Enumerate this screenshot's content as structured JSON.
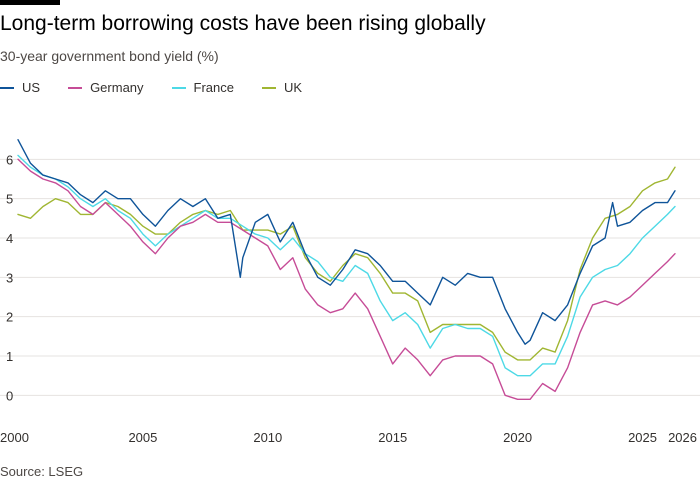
{
  "chart_data": {
    "type": "line",
    "title": "Long-term borrowing costs have been rising globally",
    "subtitle": "30-year government bond yield (%)",
    "source": "Source: LSEG",
    "xlim": [
      2000,
      2026.5
    ],
    "ylim": [
      -0.5,
      7
    ],
    "yticks": [
      0,
      1,
      2,
      3,
      4,
      5,
      6
    ],
    "xticks": [
      {
        "value": 2000,
        "label": "2000"
      },
      {
        "value": 2005,
        "label": "2005"
      },
      {
        "value": 2010,
        "label": "2010"
      },
      {
        "value": 2015,
        "label": "2015"
      },
      {
        "value": 2020,
        "label": "2020"
      },
      {
        "value": 2025,
        "label": "2025"
      },
      {
        "value": 2026,
        "label": "2026"
      }
    ],
    "grid": true,
    "legend_position": "top-left",
    "series": [
      {
        "name": "US",
        "color": "#0f5499",
        "x": [
          2000,
          2000.5,
          2001,
          2001.5,
          2002,
          2002.5,
          2003,
          2003.5,
          2004,
          2004.5,
          2005,
          2005.5,
          2006,
          2006.5,
          2007,
          2007.5,
          2008,
          2008.5,
          2008.9,
          2009,
          2009.5,
          2010,
          2010.5,
          2011,
          2011.5,
          2012,
          2012.5,
          2013,
          2013.5,
          2014,
          2014.5,
          2015,
          2015.5,
          2016,
          2016.5,
          2017,
          2017.5,
          2018,
          2018.5,
          2019,
          2019.5,
          2020,
          2020.3,
          2020.5,
          2021,
          2021.5,
          2022,
          2022.5,
          2023,
          2023.5,
          2023.8,
          2024,
          2024.5,
          2025,
          2025.5,
          2026,
          2026.3
        ],
        "y": [
          6.5,
          5.9,
          5.6,
          5.5,
          5.4,
          5.1,
          4.9,
          5.2,
          5.0,
          5.0,
          4.6,
          4.3,
          4.7,
          5.0,
          4.8,
          5.0,
          4.5,
          4.6,
          3.0,
          3.5,
          4.4,
          4.6,
          3.9,
          4.4,
          3.6,
          3.0,
          2.8,
          3.2,
          3.7,
          3.6,
          3.3,
          2.9,
          2.9,
          2.6,
          2.3,
          3.0,
          2.8,
          3.1,
          3.0,
          3.0,
          2.2,
          1.6,
          1.3,
          1.4,
          2.1,
          1.9,
          2.3,
          3.1,
          3.8,
          4.0,
          4.9,
          4.3,
          4.4,
          4.7,
          4.9,
          4.9,
          5.2
        ]
      },
      {
        "name": "Germany",
        "color": "#c64c97",
        "x": [
          2000,
          2000.5,
          2001,
          2001.5,
          2002,
          2002.5,
          2003,
          2003.5,
          2004,
          2004.5,
          2005,
          2005.5,
          2006,
          2006.5,
          2007,
          2007.5,
          2008,
          2008.5,
          2009,
          2009.5,
          2010,
          2010.5,
          2011,
          2011.5,
          2012,
          2012.5,
          2013,
          2013.5,
          2014,
          2014.5,
          2015,
          2015.5,
          2016,
          2016.5,
          2017,
          2017.5,
          2018,
          2018.5,
          2019,
          2019.5,
          2020,
          2020.5,
          2021,
          2021.5,
          2022,
          2022.5,
          2023,
          2023.5,
          2024,
          2024.5,
          2025,
          2025.5,
          2026,
          2026.3
        ],
        "y": [
          6.0,
          5.7,
          5.5,
          5.4,
          5.2,
          4.8,
          4.6,
          4.9,
          4.6,
          4.3,
          3.9,
          3.6,
          4.0,
          4.3,
          4.4,
          4.6,
          4.4,
          4.4,
          4.2,
          4.0,
          3.8,
          3.2,
          3.5,
          2.7,
          2.3,
          2.1,
          2.2,
          2.6,
          2.2,
          1.5,
          0.8,
          1.2,
          0.9,
          0.5,
          0.9,
          1.0,
          1.0,
          1.0,
          0.8,
          0.0,
          -0.1,
          -0.1,
          0.3,
          0.1,
          0.7,
          1.6,
          2.3,
          2.4,
          2.3,
          2.5,
          2.8,
          3.1,
          3.4,
          3.6
        ]
      },
      {
        "name": "France",
        "color": "#4dd9e6",
        "x": [
          2000,
          2000.5,
          2001,
          2001.5,
          2002,
          2002.5,
          2003,
          2003.5,
          2004,
          2004.5,
          2005,
          2005.5,
          2006,
          2006.5,
          2007,
          2007.5,
          2008,
          2008.5,
          2009,
          2009.5,
          2010,
          2010.5,
          2011,
          2011.5,
          2012,
          2012.5,
          2013,
          2013.5,
          2014,
          2014.5,
          2015,
          2015.5,
          2016,
          2016.5,
          2017,
          2017.5,
          2018,
          2018.5,
          2019,
          2019.5,
          2020,
          2020.5,
          2021,
          2021.5,
          2022,
          2022.5,
          2023,
          2023.5,
          2024,
          2024.5,
          2025,
          2025.5,
          2026,
          2026.3
        ],
        "y": [
          6.1,
          5.8,
          5.6,
          5.5,
          5.3,
          5.0,
          4.8,
          5.0,
          4.7,
          4.5,
          4.1,
          3.8,
          4.1,
          4.3,
          4.5,
          4.7,
          4.5,
          4.5,
          4.3,
          4.1,
          4.0,
          3.7,
          4.0,
          3.6,
          3.4,
          3.0,
          2.9,
          3.3,
          3.1,
          2.4,
          1.9,
          2.1,
          1.8,
          1.2,
          1.7,
          1.8,
          1.7,
          1.7,
          1.5,
          0.7,
          0.5,
          0.5,
          0.8,
          0.8,
          1.5,
          2.5,
          3.0,
          3.2,
          3.3,
          3.6,
          4.0,
          4.3,
          4.6,
          4.8
        ]
      },
      {
        "name": "UK",
        "color": "#a0b632",
        "x": [
          2000,
          2000.5,
          2001,
          2001.5,
          2002,
          2002.5,
          2003,
          2003.5,
          2004,
          2004.5,
          2005,
          2005.5,
          2006,
          2006.5,
          2007,
          2007.5,
          2008,
          2008.5,
          2009,
          2009.5,
          2010,
          2010.5,
          2011,
          2011.5,
          2012,
          2012.5,
          2013,
          2013.5,
          2014,
          2014.5,
          2015,
          2015.5,
          2016,
          2016.5,
          2017,
          2017.5,
          2018,
          2018.5,
          2019,
          2019.5,
          2020,
          2020.5,
          2021,
          2021.5,
          2022,
          2022.5,
          2023,
          2023.5,
          2024,
          2024.5,
          2025,
          2025.5,
          2026,
          2026.3
        ],
        "y": [
          4.6,
          4.5,
          4.8,
          5.0,
          4.9,
          4.6,
          4.6,
          4.9,
          4.8,
          4.6,
          4.3,
          4.1,
          4.1,
          4.4,
          4.6,
          4.7,
          4.6,
          4.7,
          4.2,
          4.2,
          4.2,
          4.1,
          4.3,
          3.5,
          3.1,
          2.9,
          3.3,
          3.6,
          3.5,
          3.1,
          2.6,
          2.6,
          2.4,
          1.6,
          1.8,
          1.8,
          1.8,
          1.8,
          1.6,
          1.1,
          0.9,
          0.9,
          1.2,
          1.1,
          1.9,
          3.2,
          4.0,
          4.5,
          4.6,
          4.8,
          5.2,
          5.4,
          5.5,
          5.8
        ]
      }
    ]
  }
}
